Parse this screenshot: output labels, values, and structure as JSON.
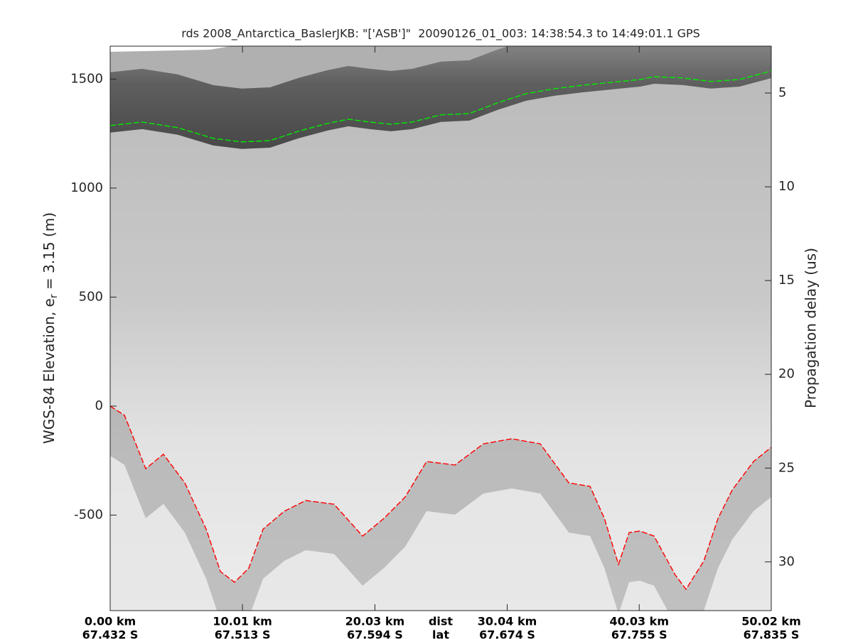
{
  "chart_data": {
    "type": "line",
    "title": "rds 2008_Antarctica_BaslerJKB: \"['ASB']\"  20090126_01_003: 14:38:54.3 to 14:49:01.1 GPS",
    "ylabel": [
      "WGS-84 Elevation, e",
      "r",
      " = 3.15 (m)"
    ],
    "y2label": "Propagation delay (us)",
    "xlabel": "dist",
    "x2label": "lat",
    "xlim": [
      0,
      50.02
    ],
    "xticks": [
      {
        "value": 0,
        "label": "0.00 km",
        "lat": "67.432 S"
      },
      {
        "value": 10.01,
        "label": "10.01 km",
        "lat": "67.513 S"
      },
      {
        "value": 20.03,
        "label": "20.03 km",
        "lat": "67.594 S"
      },
      {
        "value": 30.04,
        "label": "30.04 km",
        "lat": "67.674 S"
      },
      {
        "value": 40.03,
        "label": "40.03 km",
        "lat": "67.755 S"
      },
      {
        "value": 50.02,
        "label": "50.02 km",
        "lat": "67.835 S"
      }
    ],
    "ylim": [
      -938,
      1651
    ],
    "yticks": [
      -500,
      0,
      500,
      1000,
      1500
    ],
    "y2lim": [
      2.5,
      32.6
    ],
    "y2_inverted": true,
    "y2ticks": [
      5,
      10,
      15,
      20,
      25,
      30
    ],
    "series": [
      {
        "name": "surface",
        "color": "#00ee00",
        "style": "dashed",
        "x": [
          0,
          2.42,
          5.11,
          7.8,
          9.95,
          12.1,
          14.26,
          16.41,
          18.02,
          19.64,
          21.25,
          22.86,
          25.02,
          27.17,
          29.32,
          31.47,
          33.62,
          35.78,
          37.93,
          40.08,
          41.15,
          43.3,
          45.45,
          47.61,
          50.02
        ],
        "values": [
          1287,
          1303,
          1277,
          1228,
          1212,
          1218,
          1261,
          1296,
          1316,
          1303,
          1293,
          1303,
          1336,
          1342,
          1391,
          1433,
          1456,
          1472,
          1485,
          1498,
          1511,
          1505,
          1489,
          1498,
          1537
        ]
      },
      {
        "name": "bed",
        "color": "#ff0000",
        "style": "dashed",
        "x": [
          0,
          1.08,
          2.69,
          4.03,
          5.65,
          7.26,
          8.34,
          9.41,
          10.49,
          11.57,
          13.18,
          14.79,
          16.94,
          19.1,
          20.71,
          22.32,
          23.94,
          26.09,
          28.24,
          30.39,
          32.54,
          34.7,
          36.31,
          37.39,
          38.46,
          39.27,
          40.08,
          41.15,
          42.76,
          43.57,
          44.92,
          45.99,
          47.07,
          48.68,
          50.02
        ],
        "values": [
          0,
          -42,
          -287,
          -221,
          -352,
          -564,
          -759,
          -808,
          -743,
          -564,
          -482,
          -433,
          -450,
          -596,
          -515,
          -417,
          -254,
          -270,
          -173,
          -150,
          -173,
          -352,
          -368,
          -515,
          -726,
          -580,
          -573,
          -596,
          -775,
          -840,
          -710,
          -515,
          -384,
          -254,
          -189
        ]
      }
    ]
  }
}
